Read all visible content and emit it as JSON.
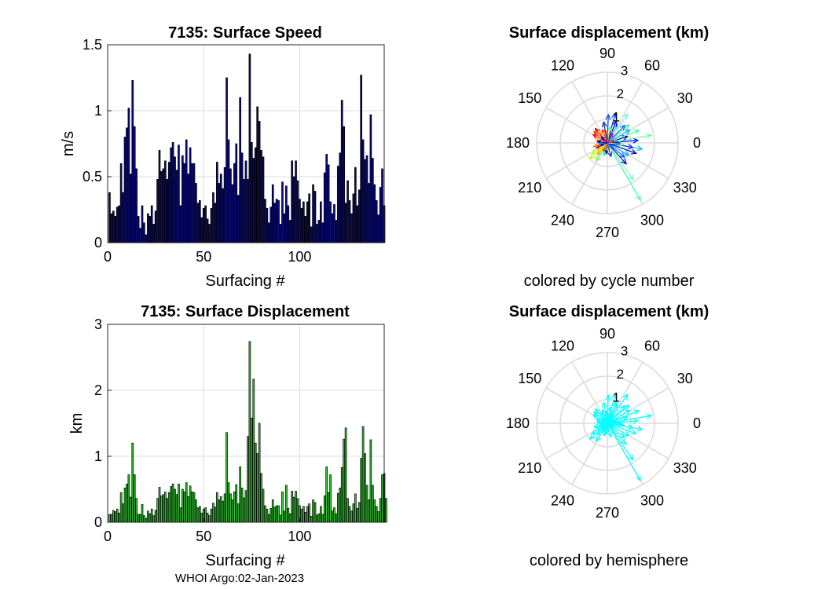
{
  "footer": "WHOI Argo:02-Jan-2023",
  "chart_data": [
    {
      "type": "bar",
      "title": "7135: Surface Speed",
      "xlabel": "Surfacing #",
      "ylabel": "m/s",
      "xlim": [
        0,
        144
      ],
      "ylim": [
        0,
        1.5
      ],
      "xticks": [
        0,
        50,
        100
      ],
      "yticks": [
        0,
        0.5,
        1,
        1.5
      ],
      "xtick_labels": [
        "0",
        "50",
        "100"
      ],
      "ytick_labels": [
        "0",
        "0.5",
        "1",
        "1.5"
      ],
      "bar_color": "#0a0a80",
      "values": [
        0.38,
        0.22,
        0.24,
        0.2,
        0.27,
        0.28,
        0.6,
        0.38,
        0.8,
        0.87,
        1.02,
        0.52,
        1.23,
        0.88,
        0.56,
        0.2,
        0.11,
        0.28,
        0.15,
        0.06,
        0.22,
        0.2,
        0.28,
        0.14,
        0.24,
        0.48,
        0.7,
        0.54,
        0.56,
        0.62,
        0.48,
        0.61,
        0.72,
        0.76,
        0.65,
        0.55,
        0.74,
        0.28,
        0.66,
        0.6,
        0.78,
        0.52,
        0.72,
        0.6,
        0.6,
        0.45,
        0.3,
        0.32,
        0.19,
        0.26,
        0.28,
        0.18,
        0.14,
        0.26,
        0.38,
        0.3,
        0.61,
        0.45,
        0.52,
        0.41,
        0.57,
        1.25,
        0.78,
        0.56,
        0.44,
        0.6,
        0.75,
        0.36,
        1.1,
        0.68,
        0.48,
        0.62,
        0.48,
        1.43,
        0.76,
        0.64,
        0.72,
        1.03,
        0.92,
        0.7,
        0.65,
        0.33,
        0.26,
        0.15,
        0.27,
        0.44,
        0.3,
        0.33,
        0.32,
        0.14,
        0.46,
        0.22,
        0.43,
        0.28,
        0.17,
        0.62,
        0.5,
        0.62,
        0.47,
        0.33,
        0.26,
        0.31,
        0.2,
        0.31,
        0.37,
        0.12,
        0.44,
        0.39,
        0.14,
        0.17,
        0.31,
        0.15,
        0.53,
        0.67,
        0.59,
        0.31,
        0.22,
        0.29,
        0.17,
        0.58,
        0.68,
        1.08,
        0.88,
        0.3,
        0.47,
        0.32,
        0.22,
        0.37,
        0.57,
        0.28,
        0.4,
        1.27,
        0.78,
        0.63,
        0.66,
        0.45,
        0.97,
        0.64,
        0.44,
        0.32,
        0.21,
        0.42,
        0.56,
        0.28
      ]
    },
    {
      "type": "bar",
      "title": "7135: Surface Displacement",
      "xlabel": "Surfacing #",
      "ylabel": "km",
      "xlim": [
        0,
        144
      ],
      "ylim": [
        0,
        3
      ],
      "xticks": [
        0,
        50,
        100
      ],
      "yticks": [
        0,
        1,
        2,
        3
      ],
      "xtick_labels": [
        "0",
        "50",
        "100"
      ],
      "ytick_labels": [
        "0",
        "1",
        "2",
        "3"
      ],
      "bar_color": "#33cc33",
      "values": [
        0.12,
        0.12,
        0.18,
        0.16,
        0.2,
        0.14,
        0.45,
        0.28,
        0.52,
        0.58,
        0.72,
        0.38,
        1.2,
        0.72,
        0.36,
        0.12,
        0.12,
        0.27,
        0.1,
        0.06,
        0.17,
        0.13,
        0.2,
        0.1,
        0.18,
        0.36,
        0.53,
        0.4,
        0.42,
        0.46,
        0.36,
        0.45,
        0.54,
        0.58,
        0.5,
        0.42,
        0.58,
        0.22,
        0.5,
        0.46,
        0.6,
        0.39,
        0.55,
        0.46,
        0.45,
        0.34,
        0.22,
        0.24,
        0.14,
        0.2,
        0.22,
        0.14,
        0.1,
        0.2,
        0.29,
        0.23,
        0.45,
        0.34,
        0.39,
        0.32,
        0.43,
        1.36,
        0.6,
        0.43,
        0.34,
        0.46,
        0.57,
        0.28,
        0.84,
        0.52,
        0.37,
        0.48,
        1.3,
        2.74,
        1.58,
        2.17,
        1.2,
        1.04,
        1.5,
        0.74,
        0.5,
        0.25,
        0.2,
        0.12,
        0.21,
        0.34,
        0.23,
        0.25,
        0.25,
        0.11,
        0.46,
        0.17,
        0.56,
        0.21,
        0.13,
        0.47,
        0.38,
        0.47,
        0.36,
        0.25,
        0.2,
        0.24,
        0.15,
        0.24,
        0.28,
        0.09,
        0.34,
        0.3,
        0.11,
        0.13,
        0.24,
        0.12,
        0.4,
        0.84,
        0.45,
        0.72,
        0.17,
        0.22,
        0.13,
        0.44,
        0.52,
        0.83,
        1.26,
        1.43,
        0.36,
        0.24,
        0.17,
        0.28,
        0.43,
        0.21,
        0.3,
        0.97,
        1.45,
        1.04,
        0.56,
        0.34,
        1.25,
        0.56,
        0.34,
        0.24,
        0.16,
        0.36,
        0.72,
        0.74,
        0.36
      ]
    },
    {
      "type": "polar-compass",
      "title": "Surface displacement (km)",
      "subtitle": "colored by cycle number",
      "rlim": [
        0,
        3
      ],
      "rticks": [
        1,
        2,
        3
      ],
      "rtick_labels": [
        "1",
        "2",
        "3"
      ],
      "theta_ticks": [
        0,
        30,
        60,
        90,
        120,
        150,
        180,
        210,
        240,
        270,
        300,
        330
      ],
      "theta_tick_labels": [
        "0",
        "30",
        "60",
        "90",
        "120",
        "150",
        "180",
        "210",
        "240",
        "270",
        "300",
        "330"
      ],
      "arrows": [
        {
          "angle": 0,
          "r": 0.55,
          "color": "#0000cc"
        },
        {
          "angle": 5,
          "r": 1.3,
          "color": "#0000ff"
        },
        {
          "angle": 10,
          "r": 1.9,
          "color": "#66ff99"
        },
        {
          "angle": -10,
          "r": 1.5,
          "color": "#00c0ff"
        },
        {
          "angle": 18,
          "r": 0.9,
          "color": "#0000aa"
        },
        {
          "angle": 22,
          "r": 1.45,
          "color": "#44ffaa"
        },
        {
          "angle": 30,
          "r": 1.1,
          "color": "#00aaff"
        },
        {
          "angle": 40,
          "r": 1.2,
          "color": "#33ff99"
        },
        {
          "angle": 45,
          "r": 1.05,
          "color": "#2255ff"
        },
        {
          "angle": 55,
          "r": 1.5,
          "color": "#66ffcc"
        },
        {
          "angle": 62,
          "r": 0.9,
          "color": "#00ccff"
        },
        {
          "angle": 68,
          "r": 1.0,
          "color": "#0000cc"
        },
        {
          "angle": 75,
          "r": 1.3,
          "color": "#0033ff"
        },
        {
          "angle": 80,
          "r": 0.7,
          "color": "#88ff44"
        },
        {
          "angle": 88,
          "r": 1.2,
          "color": "#0044ff"
        },
        {
          "angle": 95,
          "r": 0.5,
          "color": "#ff8800"
        },
        {
          "angle": 100,
          "r": 0.9,
          "color": "#0022cc"
        },
        {
          "angle": 110,
          "r": 0.6,
          "color": "#ff2222"
        },
        {
          "angle": 120,
          "r": 0.55,
          "color": "#ffaa00"
        },
        {
          "angle": 130,
          "r": 0.8,
          "color": "#cc0000"
        },
        {
          "angle": 140,
          "r": 0.75,
          "color": "#ff4400"
        },
        {
          "angle": 150,
          "r": 0.7,
          "color": "#ff0000"
        },
        {
          "angle": 160,
          "r": 0.5,
          "color": "#ffcc00"
        },
        {
          "angle": 170,
          "r": 0.45,
          "color": "#aa00aa"
        },
        {
          "angle": 175,
          "r": 0.4,
          "color": "#0000cc"
        },
        {
          "angle": 185,
          "r": 0.35,
          "color": "#00aa44"
        },
        {
          "angle": 195,
          "r": 0.6,
          "color": "#ff6600"
        },
        {
          "angle": 205,
          "r": 0.5,
          "color": "#cc0000"
        },
        {
          "angle": 215,
          "r": 0.8,
          "color": "#aaff44"
        },
        {
          "angle": 222,
          "r": 1.0,
          "color": "#ccff00"
        },
        {
          "angle": 230,
          "r": 0.65,
          "color": "#ff9900"
        },
        {
          "angle": 238,
          "r": 0.9,
          "color": "#66ff66"
        },
        {
          "angle": 245,
          "r": 0.4,
          "color": "#ff3300"
        },
        {
          "angle": 255,
          "r": 0.55,
          "color": "#00ff99"
        },
        {
          "angle": 265,
          "r": 0.45,
          "color": "#0000aa"
        },
        {
          "angle": 278,
          "r": 0.35,
          "color": "#ffcc00"
        },
        {
          "angle": 285,
          "r": 0.6,
          "color": "#2222ff"
        },
        {
          "angle": 300,
          "r": 2.8,
          "color": "#44ffaa"
        },
        {
          "angle": 305,
          "r": 1.9,
          "color": "#66ffcc"
        },
        {
          "angle": 312,
          "r": 1.2,
          "color": "#0000cc"
        },
        {
          "angle": 320,
          "r": 0.95,
          "color": "#0055ff"
        },
        {
          "angle": 330,
          "r": 1.05,
          "color": "#00aaff"
        },
        {
          "angle": 340,
          "r": 1.3,
          "color": "#0000bb"
        },
        {
          "angle": 350,
          "r": 1.1,
          "color": "#0033ff"
        },
        {
          "angle": 355,
          "r": 0.7,
          "color": "#88ff88"
        },
        {
          "angle": 15,
          "r": 0.3,
          "color": "#ff0000"
        },
        {
          "angle": 135,
          "r": 0.35,
          "color": "#0000ff"
        },
        {
          "angle": 250,
          "r": 0.25,
          "color": "#ff8800"
        },
        {
          "angle": 60,
          "r": 0.45,
          "color": "#cc00cc"
        },
        {
          "angle": 200,
          "r": 0.3,
          "color": "#0000ff"
        }
      ]
    },
    {
      "type": "polar-compass",
      "title": "Surface displacement (km)",
      "subtitle": "colored by hemisphere",
      "rlim": [
        0,
        3
      ],
      "rticks": [
        1,
        2,
        3
      ],
      "rtick_labels": [
        "1",
        "2",
        "3"
      ],
      "theta_ticks": [
        0,
        30,
        60,
        90,
        120,
        150,
        180,
        210,
        240,
        270,
        300,
        330
      ],
      "theta_tick_labels": [
        "0",
        "30",
        "60",
        "90",
        "120",
        "150",
        "180",
        "210",
        "240",
        "270",
        "300",
        "330"
      ],
      "arrow_color": "#00ffff",
      "arrows": [
        {
          "angle": 0,
          "r": 0.55
        },
        {
          "angle": 5,
          "r": 1.3
        },
        {
          "angle": 10,
          "r": 1.9
        },
        {
          "angle": -10,
          "r": 1.5
        },
        {
          "angle": 18,
          "r": 0.9
        },
        {
          "angle": 22,
          "r": 1.45
        },
        {
          "angle": 30,
          "r": 1.1
        },
        {
          "angle": 40,
          "r": 1.2
        },
        {
          "angle": 45,
          "r": 1.05
        },
        {
          "angle": 55,
          "r": 1.5
        },
        {
          "angle": 62,
          "r": 0.9
        },
        {
          "angle": 68,
          "r": 1.0
        },
        {
          "angle": 75,
          "r": 1.3
        },
        {
          "angle": 80,
          "r": 0.7
        },
        {
          "angle": 88,
          "r": 1.2
        },
        {
          "angle": 95,
          "r": 0.5
        },
        {
          "angle": 100,
          "r": 0.9
        },
        {
          "angle": 110,
          "r": 0.6
        },
        {
          "angle": 120,
          "r": 0.55
        },
        {
          "angle": 130,
          "r": 0.8
        },
        {
          "angle": 140,
          "r": 0.75
        },
        {
          "angle": 150,
          "r": 0.7
        },
        {
          "angle": 160,
          "r": 0.5
        },
        {
          "angle": 170,
          "r": 0.45
        },
        {
          "angle": 175,
          "r": 0.4
        },
        {
          "angle": 185,
          "r": 0.35
        },
        {
          "angle": 195,
          "r": 0.6
        },
        {
          "angle": 205,
          "r": 0.5
        },
        {
          "angle": 215,
          "r": 0.8
        },
        {
          "angle": 222,
          "r": 1.0
        },
        {
          "angle": 230,
          "r": 0.65
        },
        {
          "angle": 238,
          "r": 0.9
        },
        {
          "angle": 245,
          "r": 0.4
        },
        {
          "angle": 255,
          "r": 0.55
        },
        {
          "angle": 265,
          "r": 0.45
        },
        {
          "angle": 278,
          "r": 0.35
        },
        {
          "angle": 285,
          "r": 0.6
        },
        {
          "angle": 300,
          "r": 2.8
        },
        {
          "angle": 305,
          "r": 1.9
        },
        {
          "angle": 312,
          "r": 1.2
        },
        {
          "angle": 320,
          "r": 0.95
        },
        {
          "angle": 330,
          "r": 1.05
        },
        {
          "angle": 340,
          "r": 1.3
        },
        {
          "angle": 350,
          "r": 1.1
        },
        {
          "angle": 355,
          "r": 0.7
        },
        {
          "angle": 15,
          "r": 0.3
        },
        {
          "angle": 135,
          "r": 0.35
        },
        {
          "angle": 250,
          "r": 0.25
        },
        {
          "angle": 60,
          "r": 0.45
        },
        {
          "angle": 200,
          "r": 0.3
        }
      ]
    }
  ]
}
